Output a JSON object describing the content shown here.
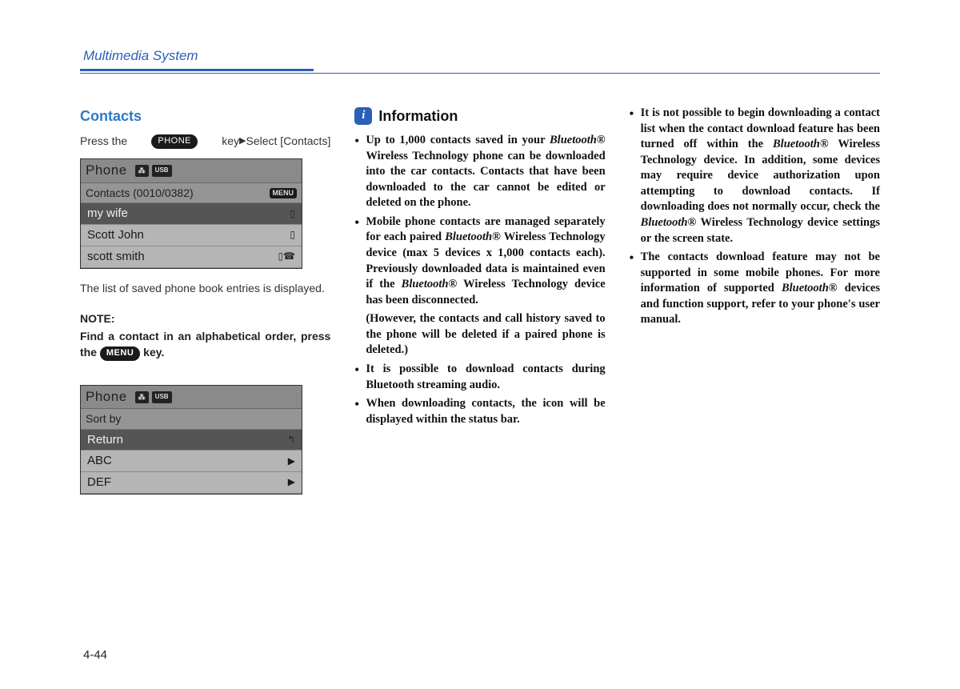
{
  "header": {
    "title": "Multimedia System",
    "accent_color": "#2b5fb8"
  },
  "column1": {
    "section_title": "Contacts",
    "press_text_a": "Press the ",
    "phone_key": "PHONE",
    "press_text_b": " key",
    "press_text_c": "Select [Contacts]",
    "screen1": {
      "header": "Phone",
      "usb": "USB",
      "sub_label": "Contacts  (0010/0382)",
      "menu": "MENU",
      "rows": [
        {
          "label": "my wife",
          "highlight": true,
          "icon": "phone"
        },
        {
          "label": "Scott John",
          "highlight": false,
          "icon": "phone"
        },
        {
          "label": "scott smith",
          "highlight": false,
          "icon": "phone2"
        }
      ]
    },
    "caption1": "The list of saved phone book entries is displayed.",
    "note_heading": "NOTE:",
    "note_body_a": "Find a contact in an alphabetical order, press the ",
    "menu_key": "MENU",
    "note_body_b": " key.",
    "screen2": {
      "header": "Phone",
      "usb": "USB",
      "sub_label": "Sort by",
      "rows": [
        {
          "label": "Return",
          "highlight": true,
          "icon": "back"
        },
        {
          "label": "ABC",
          "highlight": false,
          "icon": "caret"
        },
        {
          "label": "DEF",
          "highlight": false,
          "icon": "caret"
        }
      ]
    }
  },
  "column2": {
    "info_title": "Information",
    "bullets": [
      "Up to 1,000 contacts saved in your <span class=\"italic\">Bluetooth®</span> Wireless Technology phone can be downloaded into the car contacts. Contacts that have been downloaded to the car cannot be edited or deleted on the phone.",
      "Mobile phone contacts are managed separately for each paired <span class=\"italic\">Bluetooth®</span> Wireless Technology device (max 5 devices x 1,000 contacts each). Previously downloaded data is maintained even if the <span class=\"italic\">Bluetooth®</span> Wireless Technology device has been disconnected."
    ],
    "sub_note": "(However, the contacts and call history saved to the phone will be deleted if a paired phone is deleted.)",
    "bullets2": [
      "It is possible to download contacts during Bluetooth streaming audio.",
      "When downloading contacts, the icon will be displayed within the status bar."
    ]
  },
  "column3": {
    "bullets": [
      "It is not possible to begin downloading a contact list when the contact download feature has been turned off within the <span class=\"italic\">Bluetooth®</span> Wireless Technology device. In addition, some devices may require device authorization upon attempting to download contacts. If downloading does not normally occur, check the <span class=\"italic\">Bluetooth®</span> Wireless Technology device settings or the screen state.",
      "The contacts download feature may not be supported in some mobile phones. For more information of supported <span class=\"italic\">Bluetooth®</span> devices and function support, refer to your phone's user manual."
    ]
  },
  "page_number": "4-44"
}
